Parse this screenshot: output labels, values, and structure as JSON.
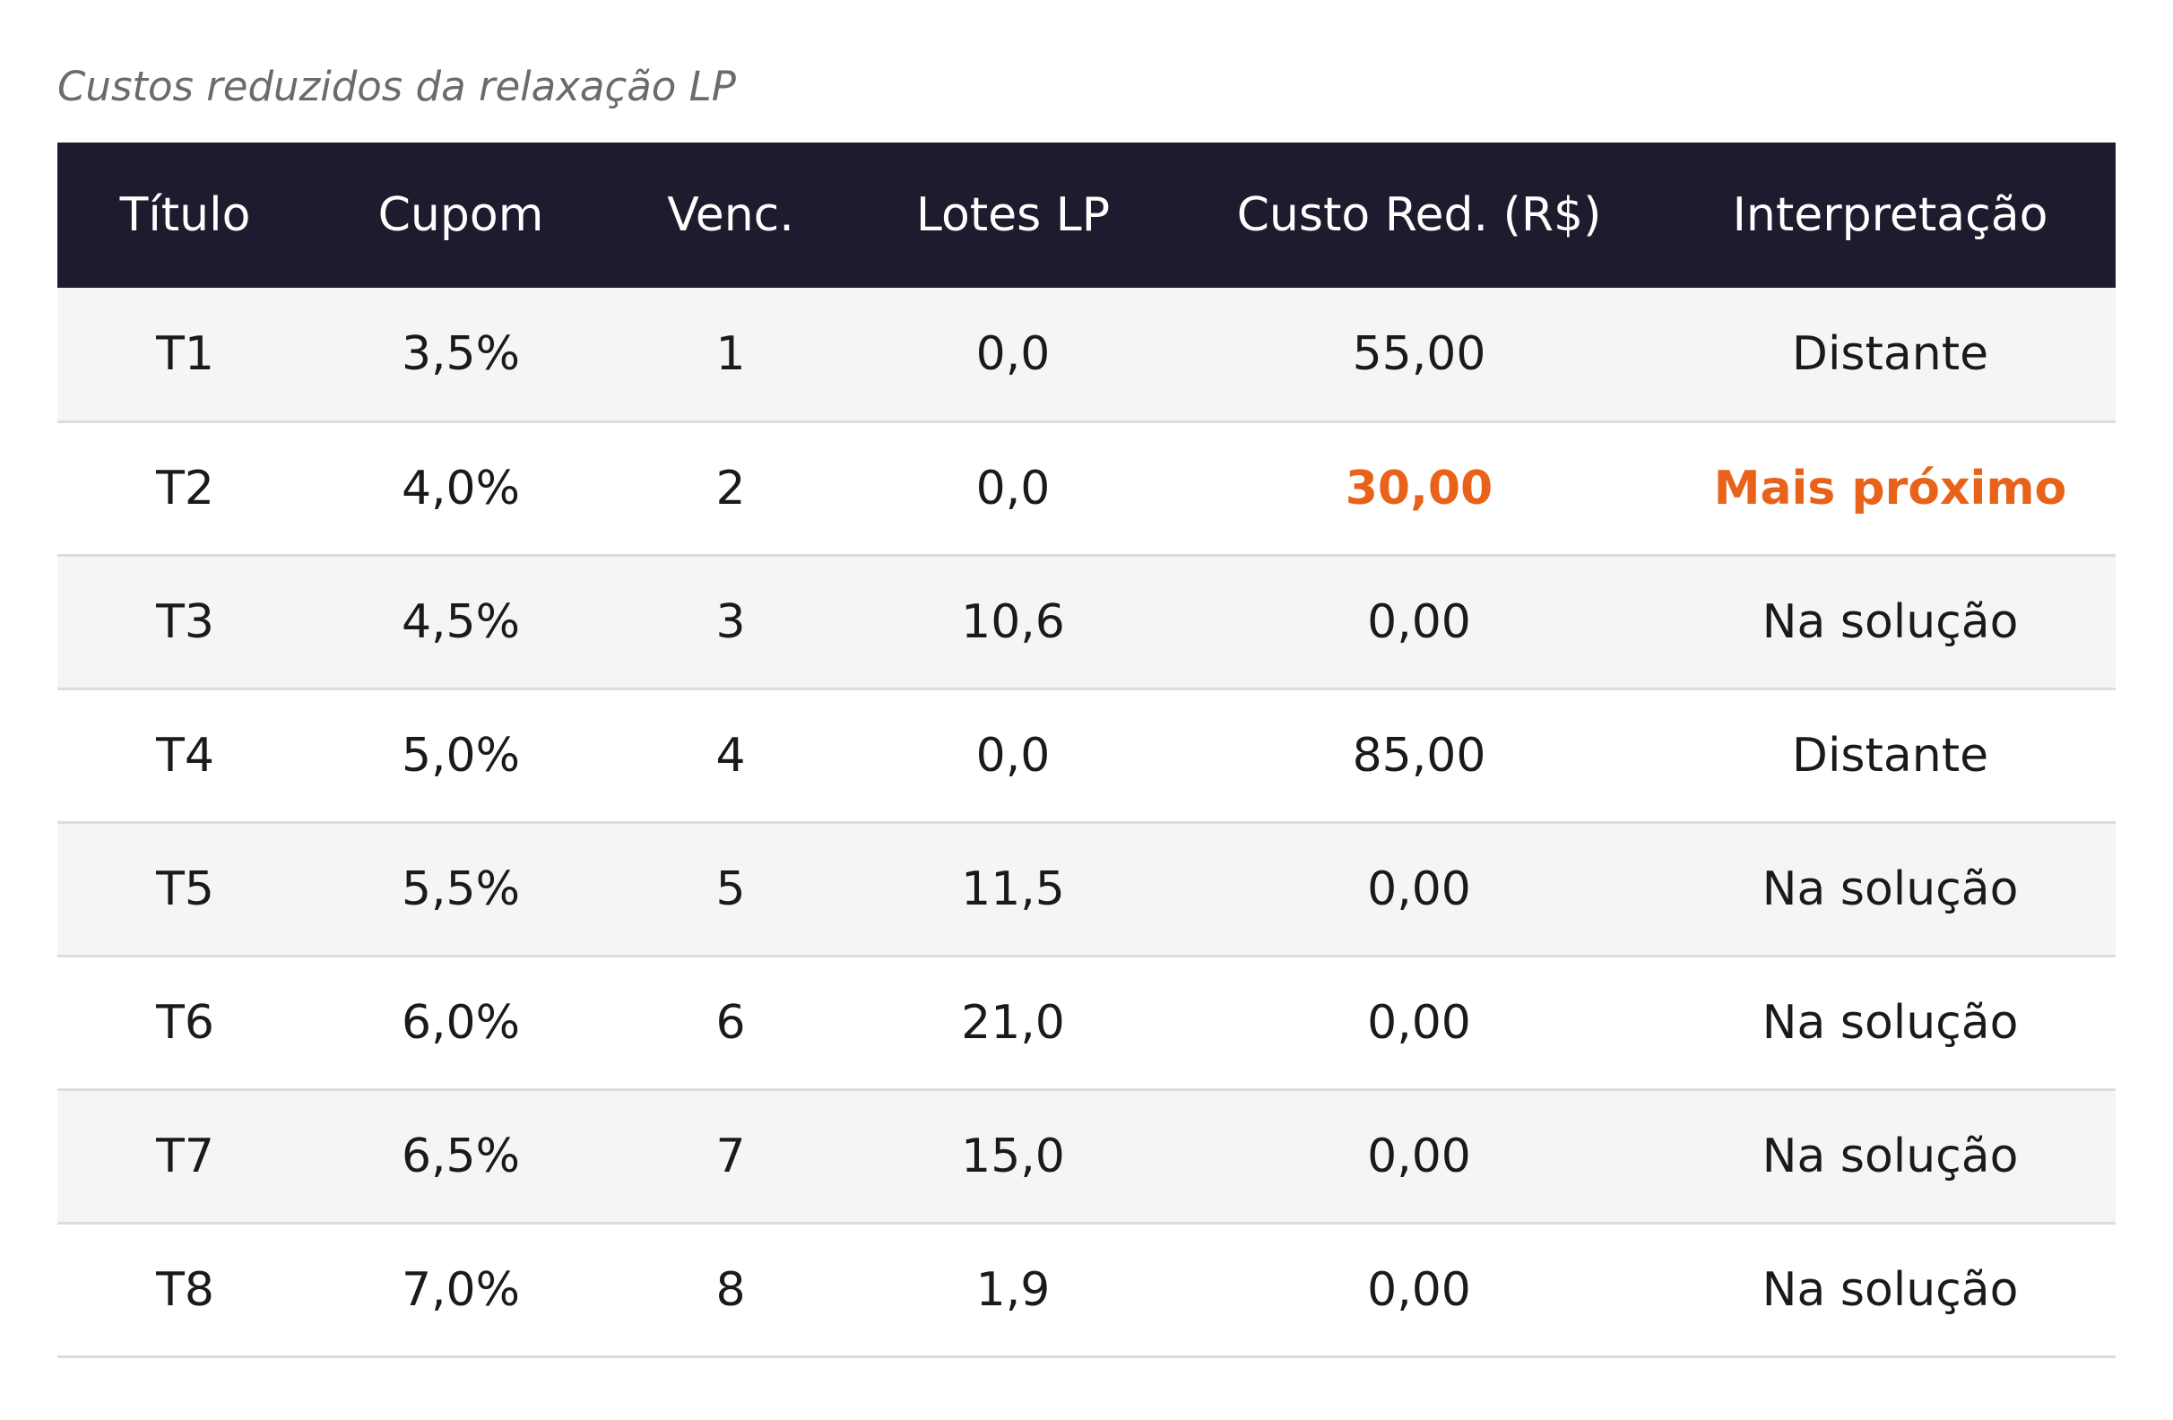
{
  "caption": "Custos reduzidos da relaxação LP",
  "colors": {
    "header_bg": "#1c1c2e",
    "highlight": "#e8621a",
    "row_alt": "#f5f5f5"
  },
  "table": {
    "headers": [
      "Título",
      "Cupom",
      "Venc.",
      "Lotes LP",
      "Custo Red. (R$)",
      "Interpretação"
    ],
    "rows": [
      [
        "T1",
        "3,5%",
        "1",
        "0,0",
        "55,00",
        "Distante"
      ],
      [
        "T2",
        "4,0%",
        "2",
        "0,0",
        "30,00",
        "Mais próximo"
      ],
      [
        "T3",
        "4,5%",
        "3",
        "10,6",
        "0,00",
        "Na solução"
      ],
      [
        "T4",
        "5,0%",
        "4",
        "0,0",
        "85,00",
        "Distante"
      ],
      [
        "T5",
        "5,5%",
        "5",
        "11,5",
        "0,00",
        "Na solução"
      ],
      [
        "T6",
        "6,0%",
        "6",
        "21,0",
        "0,00",
        "Na solução"
      ],
      [
        "T7",
        "6,5%",
        "7",
        "15,0",
        "0,00",
        "Na solução"
      ],
      [
        "T8",
        "7,0%",
        "8",
        "1,9",
        "0,00",
        "Na solução"
      ]
    ],
    "highlighted_row": 1,
    "highlighted_columns": [
      4,
      5
    ]
  }
}
